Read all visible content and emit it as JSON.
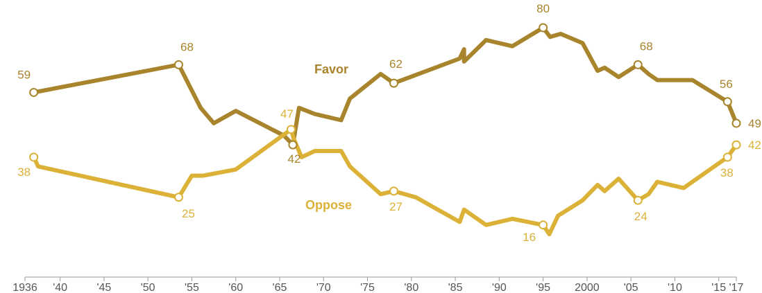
{
  "chart_data": {
    "type": "line",
    "x_ticks": [
      {
        "value": 1936,
        "label": "1936"
      },
      {
        "value": 1940,
        "label": "'40"
      },
      {
        "value": 1945,
        "label": "'45"
      },
      {
        "value": 1950,
        "label": "'50"
      },
      {
        "value": 1955,
        "label": "'55"
      },
      {
        "value": 1960,
        "label": "'60"
      },
      {
        "value": 1965,
        "label": "'65"
      },
      {
        "value": 1970,
        "label": "'70"
      },
      {
        "value": 1975,
        "label": "'75"
      },
      {
        "value": 1980,
        "label": "'80"
      },
      {
        "value": 1985,
        "label": "'85"
      },
      {
        "value": 1990,
        "label": "'90"
      },
      {
        "value": 1995,
        "label": "'95"
      },
      {
        "value": 2000,
        "label": "2000"
      },
      {
        "value": 2005,
        "label": "'05"
      },
      {
        "value": 2010,
        "label": "'10"
      },
      {
        "value": 2015,
        "label": "'15"
      },
      {
        "value": 2017,
        "label": "'17"
      }
    ],
    "xlim": [
      1936,
      2017
    ],
    "ylim": [
      0,
      90
    ],
    "grid": false,
    "legend": "inline labels",
    "series": [
      {
        "name": "Favor",
        "color": "#a8842c",
        "points": [
          [
            1937,
            59
          ],
          [
            1953.5,
            68
          ],
          [
            1956,
            54
          ],
          [
            1957.5,
            49
          ],
          [
            1960,
            53
          ],
          [
            1965.5,
            45
          ],
          [
            1966.5,
            42
          ],
          [
            1967.2,
            54
          ],
          [
            1969,
            52
          ],
          [
            1972,
            50
          ],
          [
            1973,
            57
          ],
          [
            1976.5,
            65
          ],
          [
            1978,
            62
          ],
          [
            1985.5,
            70
          ],
          [
            1986,
            73
          ],
          [
            1986,
            69
          ],
          [
            1988.5,
            76
          ],
          [
            1991.5,
            74
          ],
          [
            1995,
            80
          ],
          [
            1995.8,
            77
          ],
          [
            1997,
            78
          ],
          [
            1999.5,
            75
          ],
          [
            2001.2,
            66
          ],
          [
            2002,
            67
          ],
          [
            2003.6,
            64
          ],
          [
            2005.8,
            68
          ],
          [
            2007,
            65
          ],
          [
            2008,
            63
          ],
          [
            2012,
            63
          ],
          [
            2016,
            56
          ],
          [
            2017,
            49
          ]
        ],
        "labeled_points": [
          {
            "x": 1937,
            "y": 59,
            "label": "59"
          },
          {
            "x": 1953.5,
            "y": 68,
            "label": "68"
          },
          {
            "x": 1966.5,
            "y": 42,
            "label": "42"
          },
          {
            "x": 1978,
            "y": 62,
            "label": "62"
          },
          {
            "x": 1995,
            "y": 80,
            "label": "80"
          },
          {
            "x": 2005.8,
            "y": 68,
            "label": "68"
          },
          {
            "x": 2016,
            "y": 56,
            "label": "56"
          },
          {
            "x": 2017,
            "y": 49,
            "label": "49"
          }
        ]
      },
      {
        "name": "Oppose",
        "color": "#dbb237",
        "points": [
          [
            1937,
            38
          ],
          [
            1937.5,
            35
          ],
          [
            1953.5,
            25
          ],
          [
            1955,
            32
          ],
          [
            1956.3,
            32
          ],
          [
            1960,
            34
          ],
          [
            1966.3,
            47
          ],
          [
            1966.6,
            44
          ],
          [
            1967.5,
            38
          ],
          [
            1969,
            40
          ],
          [
            1972,
            40
          ],
          [
            1973,
            35
          ],
          [
            1976.5,
            26
          ],
          [
            1978,
            27
          ],
          [
            1980.5,
            25
          ],
          [
            1985.5,
            17
          ],
          [
            1986,
            21
          ],
          [
            1988.5,
            16
          ],
          [
            1991.5,
            18
          ],
          [
            1995,
            16
          ],
          [
            1995.7,
            13
          ],
          [
            1996.7,
            19
          ],
          [
            1999.5,
            24
          ],
          [
            2001.2,
            29
          ],
          [
            2002,
            27
          ],
          [
            2003.6,
            31
          ],
          [
            2005.8,
            24
          ],
          [
            2007,
            26
          ],
          [
            2008,
            30
          ],
          [
            2011,
            28
          ],
          [
            2016,
            38
          ],
          [
            2017,
            42
          ]
        ],
        "labeled_points": [
          {
            "x": 1937,
            "y": 38,
            "label": "38"
          },
          {
            "x": 1953.5,
            "y": 25,
            "label": "25"
          },
          {
            "x": 1966.3,
            "y": 47,
            "label": "47"
          },
          {
            "x": 1978,
            "y": 27,
            "label": "27"
          },
          {
            "x": 1995,
            "y": 16,
            "label": "16"
          },
          {
            "x": 2005.8,
            "y": 24,
            "label": "24"
          },
          {
            "x": 2016,
            "y": 38,
            "label": "38"
          },
          {
            "x": 2017,
            "y": 42,
            "label": "42"
          }
        ]
      }
    ]
  }
}
